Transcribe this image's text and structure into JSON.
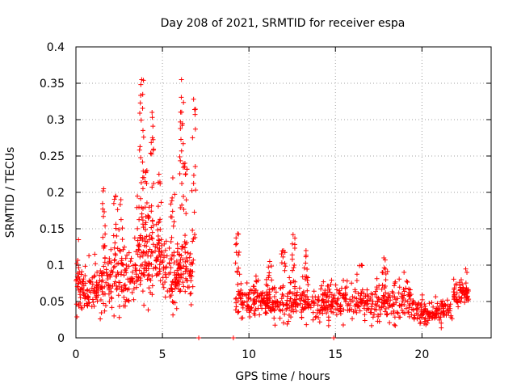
{
  "chart_data": {
    "type": "scatter",
    "title": "Day 208 of 2021, SRMTID for receiver espa",
    "xlabel": "GPS time / hours",
    "ylabel": "SRMTID / TECUs",
    "xlim": [
      0,
      24
    ],
    "ylim": [
      0,
      0.4
    ],
    "x_ticks": [
      0,
      5,
      10,
      15,
      20
    ],
    "x_tick_labels": [
      "0",
      "5",
      "10",
      "15",
      "20"
    ],
    "y_ticks": [
      0,
      0.05,
      0.1,
      0.15,
      0.2,
      0.25,
      0.3,
      0.35,
      0.4
    ],
    "y_tick_labels": [
      "0",
      "0.05",
      "0.1",
      "0.15",
      "0.2",
      "0.25",
      "0.3",
      "0.35",
      "0.4"
    ],
    "grid": true,
    "marker": "+",
    "color": "#ff0000",
    "seed": 208,
    "segments": [
      {
        "x_start": 0.0,
        "x_end": 1.6,
        "base": 0.065,
        "spread": 0.03,
        "count": 110
      },
      {
        "x_start": 1.6,
        "x_end": 3.5,
        "base": 0.08,
        "spread": 0.035,
        "count": 130
      },
      {
        "x_start": 3.5,
        "x_end": 5.0,
        "base": 0.11,
        "spread": 0.05,
        "count": 130
      },
      {
        "x_start": 5.0,
        "x_end": 6.8,
        "base": 0.09,
        "spread": 0.04,
        "count": 140
      },
      {
        "x_start": 9.2,
        "x_end": 12.0,
        "base": 0.05,
        "spread": 0.02,
        "count": 180
      },
      {
        "x_start": 12.0,
        "x_end": 16.0,
        "base": 0.048,
        "spread": 0.02,
        "count": 230
      },
      {
        "x_start": 16.0,
        "x_end": 19.5,
        "base": 0.048,
        "spread": 0.022,
        "count": 190
      },
      {
        "x_start": 19.5,
        "x_end": 21.8,
        "base": 0.035,
        "spread": 0.015,
        "count": 130
      },
      {
        "x_start": 21.8,
        "x_end": 22.7,
        "base": 0.06,
        "spread": 0.02,
        "count": 60
      }
    ],
    "bursts": [
      {
        "x": 0.15,
        "y_min": 0.08,
        "y_max": 0.135,
        "count": 10
      },
      {
        "x": 1.6,
        "y_min": 0.1,
        "y_max": 0.205,
        "count": 12
      },
      {
        "x": 2.3,
        "y_min": 0.12,
        "y_max": 0.195,
        "count": 10
      },
      {
        "x": 2.6,
        "y_min": 0.1,
        "y_max": 0.19,
        "count": 8
      },
      {
        "x": 3.8,
        "y_min": 0.15,
        "y_max": 0.355,
        "count": 24
      },
      {
        "x": 4.1,
        "y_min": 0.12,
        "y_max": 0.23,
        "count": 12
      },
      {
        "x": 4.4,
        "y_min": 0.14,
        "y_max": 0.31,
        "count": 14
      },
      {
        "x": 4.8,
        "y_min": 0.1,
        "y_max": 0.225,
        "count": 10
      },
      {
        "x": 5.6,
        "y_min": 0.1,
        "y_max": 0.22,
        "count": 12
      },
      {
        "x": 6.1,
        "y_min": 0.15,
        "y_max": 0.355,
        "count": 20
      },
      {
        "x": 6.3,
        "y_min": 0.12,
        "y_max": 0.24,
        "count": 10
      },
      {
        "x": 6.8,
        "y_min": 0.12,
        "y_max": 0.328,
        "count": 16
      },
      {
        "x": 9.35,
        "y_min": 0.08,
        "y_max": 0.143,
        "count": 12
      },
      {
        "x": 11.2,
        "y_min": 0.06,
        "y_max": 0.105,
        "count": 8
      },
      {
        "x": 12.0,
        "y_min": 0.07,
        "y_max": 0.12,
        "count": 8
      },
      {
        "x": 12.55,
        "y_min": 0.07,
        "y_max": 0.142,
        "count": 12
      },
      {
        "x": 13.3,
        "y_min": 0.06,
        "y_max": 0.12,
        "count": 10
      },
      {
        "x": 17.8,
        "y_min": 0.05,
        "y_max": 0.11,
        "count": 10
      },
      {
        "x": 16.5,
        "y_min": 0.05,
        "y_max": 0.1,
        "count": 6
      },
      {
        "x": 22.6,
        "y_min": 0.05,
        "y_max": 0.09,
        "count": 6
      }
    ],
    "zero_points": [
      {
        "x": 7.1,
        "y": 0
      },
      {
        "x": 9.1,
        "y": 0
      },
      {
        "x": 14.9,
        "y": 0
      }
    ]
  }
}
